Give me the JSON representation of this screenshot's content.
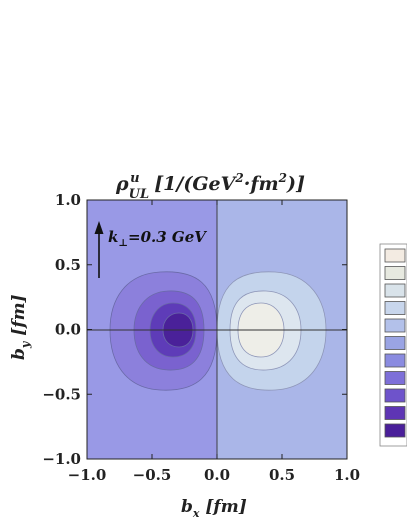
{
  "chart_data": {
    "type": "contour",
    "title": {
      "symbol": "ρ",
      "superscript": "u",
      "subscript": "UL",
      "units_open": " [1/(GeV",
      "units_exp1": "2",
      "units_mid": "·fm",
      "units_exp2": "2",
      "units_close": ")]"
    },
    "xlabel": {
      "main": "b",
      "sub": "x",
      "units": " [fm]"
    },
    "ylabel": {
      "main": "b",
      "sub": "y",
      "units": " [fm]"
    },
    "xlim": [
      -1.0,
      1.0
    ],
    "ylim": [
      -1.0,
      1.0
    ],
    "x_ticks": [
      "-1.0",
      "-0.5",
      "0.0",
      "0.5",
      "1.0"
    ],
    "y_ticks": [
      "1.0",
      "0.5",
      "0.0",
      "-0.5",
      "-1.0"
    ],
    "x_tick_values": [
      -1.0,
      -0.5,
      0.0,
      0.5,
      1.0
    ],
    "y_tick_values": [
      1.0,
      0.5,
      0.0,
      -0.5,
      -1.0
    ],
    "annotation": {
      "symbol": "k",
      "sub": "⊥",
      "text": "=0.3 GeV"
    },
    "grid": false,
    "legend": "right",
    "colors": {
      "background_left": "#9999e6",
      "background_right": "#aab6e8",
      "negative_levels": [
        "#8c80dc",
        "#7a62cf",
        "#5e3cb8",
        "#4a2199"
      ],
      "positive_levels": [
        "#c4d4ec",
        "#dde6ef",
        "#eeeee8"
      ],
      "legend_swatches": [
        "#f3ebe2",
        "#e7e9e0",
        "#d9e3ea",
        "#c8d6ec",
        "#b3c1ea",
        "#9aa4e4",
        "#8a8be0",
        "#7d6fd8",
        "#6e53cb",
        "#5e35b4",
        "#4a1f9a"
      ],
      "legend_border": "#555555"
    },
    "lobes": [
      {
        "sign": "negative",
        "center": [
          -0.3,
          0.0
        ],
        "levels": 4
      },
      {
        "sign": "positive",
        "center": [
          0.3,
          0.0
        ],
        "levels": 3
      }
    ]
  }
}
